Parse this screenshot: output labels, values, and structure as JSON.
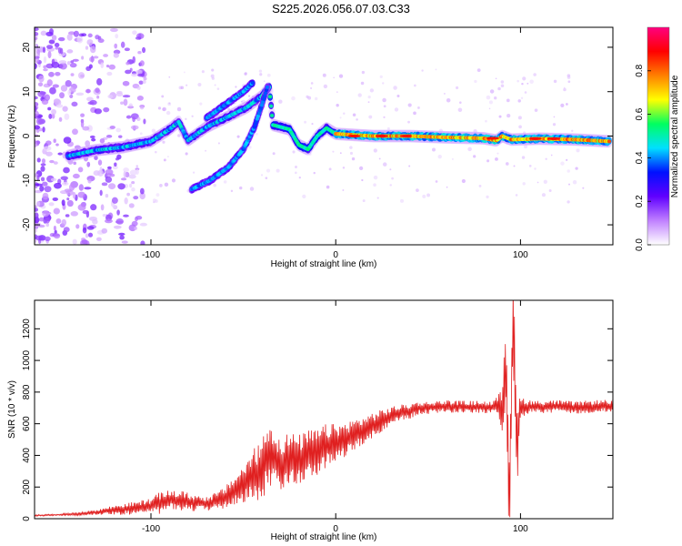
{
  "title": "S225.2026.056.07.03.C33",
  "chart_data": [
    {
      "type": "heatmap",
      "xlabel": "Height of straight line (km)",
      "ylabel": "Frequency (Hz)",
      "xlim": [
        -163,
        150
      ],
      "ylim": [
        -24.5,
        24.5
      ],
      "xticks": [
        -100,
        0,
        100
      ],
      "yticks": [
        -20,
        -10,
        0,
        10,
        20
      ],
      "colorbar": {
        "label": "Normalized spectral amplitude",
        "range": [
          0,
          1
        ],
        "ticks": [
          0.0,
          0.2,
          0.4,
          0.6,
          0.8
        ],
        "colormap": [
          "#ffffff",
          "#c080ff",
          "#6000ff",
          "#0010ff",
          "#00e0ff",
          "#00ff60",
          "#ffff00",
          "#ff8000",
          "#ff0000",
          "#ff0080"
        ]
      },
      "ridges": [
        {
          "name": "main",
          "points": [
            [
              -145,
              -4.5
            ],
            [
              -130,
              -3.2
            ],
            [
              -115,
              -2.5
            ],
            [
              -100,
              -1.2
            ],
            [
              -90,
              1.5
            ],
            [
              -85,
              3.2
            ],
            [
              -80,
              -1
            ],
            [
              -70,
              2
            ],
            [
              -60,
              4
            ],
            [
              -48,
              6.5
            ],
            [
              -40,
              9
            ],
            [
              -36,
              11
            ],
            [
              -34,
              2.5
            ],
            [
              -25,
              1.5
            ],
            [
              -20,
              -2
            ],
            [
              -15,
              -3
            ],
            [
              -10,
              0
            ],
            [
              -5,
              1.8
            ],
            [
              0,
              0.5
            ],
            [
              20,
              0
            ],
            [
              40,
              0
            ],
            [
              60,
              -0.3
            ],
            [
              80,
              -0.5
            ],
            [
              87,
              -1
            ],
            [
              90,
              0
            ],
            [
              95,
              -0.8
            ],
            [
              110,
              -0.6
            ],
            [
              130,
              -0.8
            ],
            [
              148,
              -1.2
            ]
          ]
        },
        {
          "name": "upper-branch",
          "points": [
            [
              -70,
              4
            ],
            [
              -60,
              7
            ],
            [
              -50,
              10
            ],
            [
              -45,
              12
            ]
          ]
        },
        {
          "name": "lower-branch",
          "points": [
            [
              -78,
              -12
            ],
            [
              -68,
              -10
            ],
            [
              -58,
              -7
            ],
            [
              -50,
              -3
            ],
            [
              -44,
              2
            ],
            [
              -40,
              7
            ],
            [
              -37,
              11
            ]
          ]
        }
      ]
    },
    {
      "type": "line",
      "xlabel": "Height of straight line (km)",
      "ylabel": "SNR (10 * v/v)",
      "xlim": [
        -163,
        150
      ],
      "ylim": [
        0,
        1380
      ],
      "xticks": [
        -100,
        0,
        100
      ],
      "yticks": [
        0,
        200,
        400,
        600,
        800,
        1000,
        1200
      ],
      "series": [
        {
          "name": "SNR",
          "color": "#e02020",
          "x": [
            -163,
            -150,
            -140,
            -130,
            -120,
            -110,
            -100,
            -95,
            -90,
            -85,
            -80,
            -75,
            -70,
            -65,
            -60,
            -55,
            -50,
            -45,
            -40,
            -36,
            -34,
            -30,
            -25,
            -20,
            -15,
            -10,
            -5,
            0,
            5,
            10,
            15,
            20,
            25,
            30,
            35,
            40,
            45,
            50,
            60,
            70,
            80,
            85,
            88,
            90,
            92,
            94,
            96,
            98,
            100,
            102,
            105,
            110,
            120,
            130,
            140,
            150
          ],
          "values": [
            20,
            25,
            30,
            40,
            55,
            65,
            80,
            100,
            120,
            110,
            105,
            100,
            95,
            110,
            130,
            180,
            220,
            260,
            310,
            420,
            380,
            340,
            380,
            370,
            410,
            420,
            460,
            480,
            500,
            530,
            560,
            590,
            620,
            650,
            670,
            680,
            700,
            700,
            710,
            705,
            705,
            700,
            720,
            700,
            1000,
            150,
            1300,
            400,
            720,
            700,
            710,
            705,
            710,
            700,
            710,
            712
          ],
          "amplitude": [
            5,
            5,
            10,
            15,
            30,
            40,
            50,
            70,
            60,
            70,
            60,
            50,
            45,
            55,
            70,
            90,
            120,
            170,
            200,
            220,
            200,
            180,
            170,
            160,
            150,
            150,
            140,
            120,
            110,
            100,
            90,
            80,
            70,
            60,
            50,
            50,
            40,
            40,
            40,
            40,
            40,
            40,
            60,
            150,
            300,
            400,
            300,
            300,
            80,
            60,
            40,
            40,
            40,
            40,
            40,
            40
          ]
        }
      ]
    }
  ]
}
